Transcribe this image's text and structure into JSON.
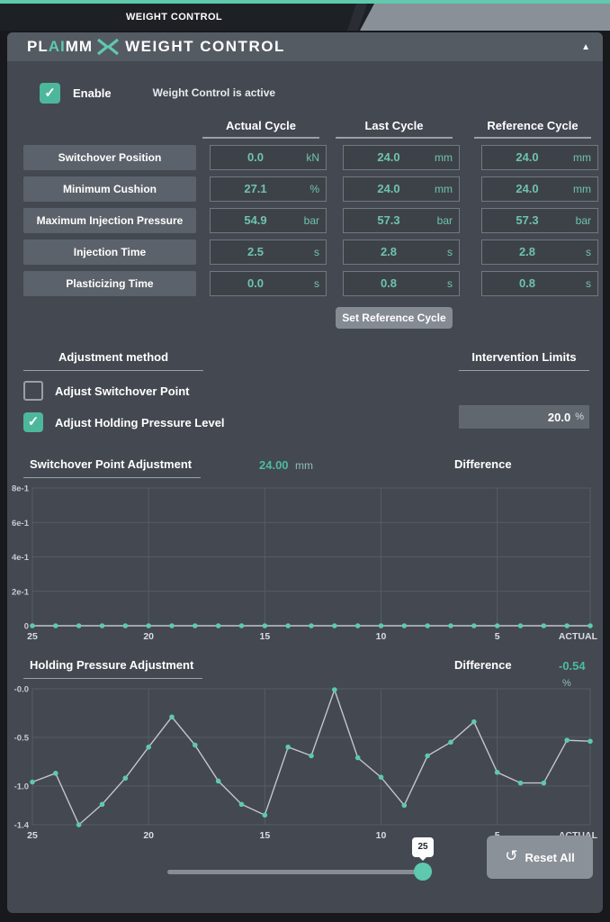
{
  "colors": {
    "accent_teal": "#5ec9ad",
    "value_teal": "#6fc3ac",
    "panel_bg": "#434851",
    "header_bg": "#555b63",
    "grid": "#565c63",
    "line_gray": "#c2c6cb"
  },
  "tab_bar": {
    "title": "WEIGHT CONTROL"
  },
  "panel_header": {
    "brand_pl": "PL",
    "brand_ai": "AI",
    "brand_mm": "MM",
    "title": "WEIGHT CONTROL",
    "collapse_icon": "▲"
  },
  "enable": {
    "label": "Enable",
    "status": "Weight Control is active",
    "checked": true
  },
  "cycle_table": {
    "columns": [
      "Actual Cycle",
      "Last Cycle",
      "Reference Cycle"
    ],
    "rows": [
      {
        "label": "Switchover Position",
        "values": [
          {
            "v": "0.0",
            "u": "kN"
          },
          {
            "v": "24.0",
            "u": "mm"
          },
          {
            "v": "24.0",
            "u": "mm"
          }
        ]
      },
      {
        "label": "Minimum Cushion",
        "values": [
          {
            "v": "27.1",
            "u": "%"
          },
          {
            "v": "24.0",
            "u": "mm"
          },
          {
            "v": "24.0",
            "u": "mm"
          }
        ]
      },
      {
        "label": "Maximum Injection Pressure",
        "values": [
          {
            "v": "54.9",
            "u": "bar"
          },
          {
            "v": "57.3",
            "u": "bar"
          },
          {
            "v": "57.3",
            "u": "bar"
          }
        ]
      },
      {
        "label": "Injection Time",
        "values": [
          {
            "v": "2.5",
            "u": "s"
          },
          {
            "v": "2.8",
            "u": "s"
          },
          {
            "v": "2.8",
            "u": "s"
          }
        ]
      },
      {
        "label": "Plasticizing Time",
        "values": [
          {
            "v": "0.0",
            "u": "s"
          },
          {
            "v": "0.8",
            "u": "s"
          },
          {
            "v": "0.8",
            "u": "s"
          }
        ]
      }
    ],
    "set_reference_button": "Set Reference Cycle"
  },
  "adjustment": {
    "heading": "Adjustment method",
    "options": [
      {
        "label": "Adjust Switchover Point",
        "checked": false
      },
      {
        "label": "Adjust Holding Pressure Level",
        "checked": true
      }
    ]
  },
  "intervention": {
    "heading": "Intervention Limits",
    "value": "20.0",
    "unit": "%"
  },
  "chart_data": [
    {
      "type": "line",
      "title": "Switchover Point Adjustment",
      "current_value": "24.00",
      "current_unit": "mm",
      "difference_label": "Difference",
      "x": [
        25,
        24,
        23,
        22,
        21,
        20,
        19,
        18,
        17,
        16,
        15,
        14,
        13,
        12,
        11,
        10,
        9,
        8,
        7,
        6,
        5,
        4,
        3,
        2,
        1
      ],
      "values": [
        0,
        0,
        0,
        0,
        0,
        0,
        0,
        0,
        0,
        0,
        0,
        0,
        0,
        0,
        0,
        0,
        0,
        0,
        0,
        0,
        0,
        0,
        0,
        0,
        0
      ],
      "x_ticks": [
        {
          "value": 25,
          "label": "25"
        },
        {
          "value": 20,
          "label": "20"
        },
        {
          "value": 15,
          "label": "15"
        },
        {
          "value": 10,
          "label": "10"
        },
        {
          "value": 5,
          "label": "5"
        },
        {
          "value": 1,
          "label": "ACTUAL"
        }
      ],
      "y_ticks": [
        {
          "value": 0.8,
          "label": "8e-1"
        },
        {
          "value": 0.6,
          "label": "6e-1"
        },
        {
          "value": 0.4,
          "label": "4e-1"
        },
        {
          "value": 0.2,
          "label": "2e-1"
        },
        {
          "value": 0,
          "label": "0"
        }
      ],
      "ylim": [
        0,
        0.8
      ],
      "grid": true,
      "legend": "none"
    },
    {
      "type": "line",
      "title": "Holding Pressure Adjustment",
      "difference_label": "Difference",
      "difference_value": "-0.54",
      "difference_unit": "%",
      "x": [
        25,
        24,
        23,
        22,
        21,
        20,
        19,
        18,
        17,
        16,
        15,
        14,
        13,
        12,
        11,
        10,
        9,
        8,
        7,
        6,
        5,
        4,
        3,
        2,
        1
      ],
      "values": [
        -0.96,
        -0.87,
        -1.4,
        -1.19,
        -0.92,
        -0.6,
        -0.29,
        -0.58,
        -0.95,
        -1.19,
        -1.3,
        -0.6,
        -0.69,
        -0.01,
        -0.71,
        -0.91,
        -1.2,
        -0.69,
        -0.55,
        -0.34,
        -0.86,
        -0.97,
        -0.97,
        -0.53,
        -0.54
      ],
      "x_ticks": [
        {
          "value": 25,
          "label": "25"
        },
        {
          "value": 20,
          "label": "20"
        },
        {
          "value": 15,
          "label": "15"
        },
        {
          "value": 10,
          "label": "10"
        },
        {
          "value": 5,
          "label": "5"
        },
        {
          "value": 1,
          "label": "ACTUAL"
        }
      ],
      "y_ticks": [
        {
          "value": 0,
          "label": "-0.0"
        },
        {
          "value": -0.5,
          "label": "-0.5"
        },
        {
          "value": -1.0,
          "label": "-1.0"
        },
        {
          "value": -1.4,
          "label": "-1.4"
        }
      ],
      "ylim": [
        -1.4,
        0
      ],
      "grid": true,
      "legend": "none"
    }
  ],
  "footer": {
    "slider_value": "25",
    "reset_button": "Reset All",
    "reset_icon": "↺"
  }
}
